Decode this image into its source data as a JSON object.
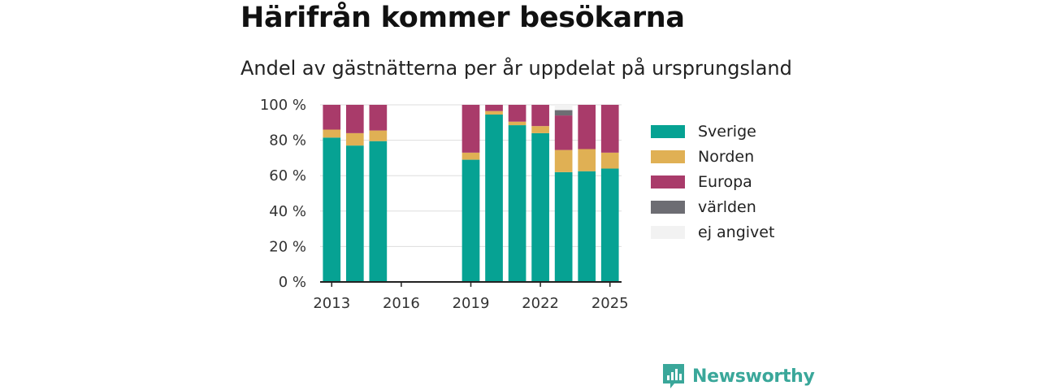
{
  "title": "Härifrån kommer besökarna",
  "subtitle": "Andel av gästnätterna per år uppdelat på ursprungsland",
  "brand": "Newsworthy",
  "chart_data": {
    "type": "bar",
    "stacked": true,
    "y_ticks": [
      "0 %",
      "20 %",
      "40 %",
      "60 %",
      "80 %",
      "100 %"
    ],
    "ylim": [
      0,
      100
    ],
    "x_ticks": [
      "2013",
      "2016",
      "2019",
      "2022",
      "2025"
    ],
    "xlim": [
      2012.5,
      2025.5
    ],
    "grid": true,
    "legend_position": "right",
    "categories": [
      2013,
      2014,
      2015,
      2016,
      2017,
      2018,
      2019,
      2020,
      2021,
      2022,
      2023,
      2024,
      2025
    ],
    "series": [
      {
        "name": "Sverige",
        "color": "#06a293",
        "values": [
          81.5,
          77,
          79.5,
          null,
          null,
          null,
          69,
          94.5,
          88.5,
          84,
          62,
          62.5,
          64
        ]
      },
      {
        "name": "Norden",
        "color": "#e0b054",
        "values": [
          4.5,
          7,
          6,
          null,
          null,
          null,
          4,
          2,
          2,
          4,
          12.5,
          12.5,
          9
        ]
      },
      {
        "name": "Europa",
        "color": "#a93b6a",
        "values": [
          14,
          16,
          14.5,
          null,
          null,
          null,
          27,
          3.5,
          9.5,
          12,
          19.5,
          25,
          27
        ]
      },
      {
        "name": "världen",
        "color": "#6d6d73",
        "values": [
          0,
          0,
          0,
          null,
          null,
          null,
          0,
          0,
          0,
          0,
          3,
          0,
          0
        ]
      },
      {
        "name": "ej angivet",
        "color": "#f2f2f2",
        "values": [
          0,
          0,
          0,
          null,
          null,
          null,
          0,
          0,
          0,
          0,
          3,
          0,
          0
        ]
      }
    ]
  }
}
